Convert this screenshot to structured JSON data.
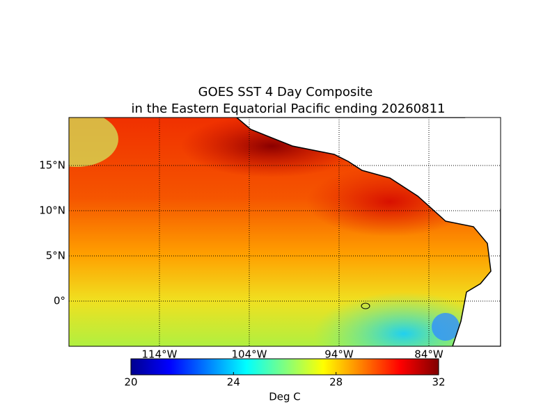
{
  "title": [
    "GOES SST 4 Day Composite",
    "in the Eastern Equatorial Pacific ending 20260811"
  ],
  "map": {
    "lat_labels": [
      "15°N",
      "10°N",
      "5°N",
      "0°"
    ],
    "lon_labels": [
      "114°W",
      "104°W",
      "94°W",
      "84°W"
    ]
  },
  "colorbar": {
    "ticks": [
      20,
      24,
      28,
      32
    ],
    "label": "Deg C"
  }
}
